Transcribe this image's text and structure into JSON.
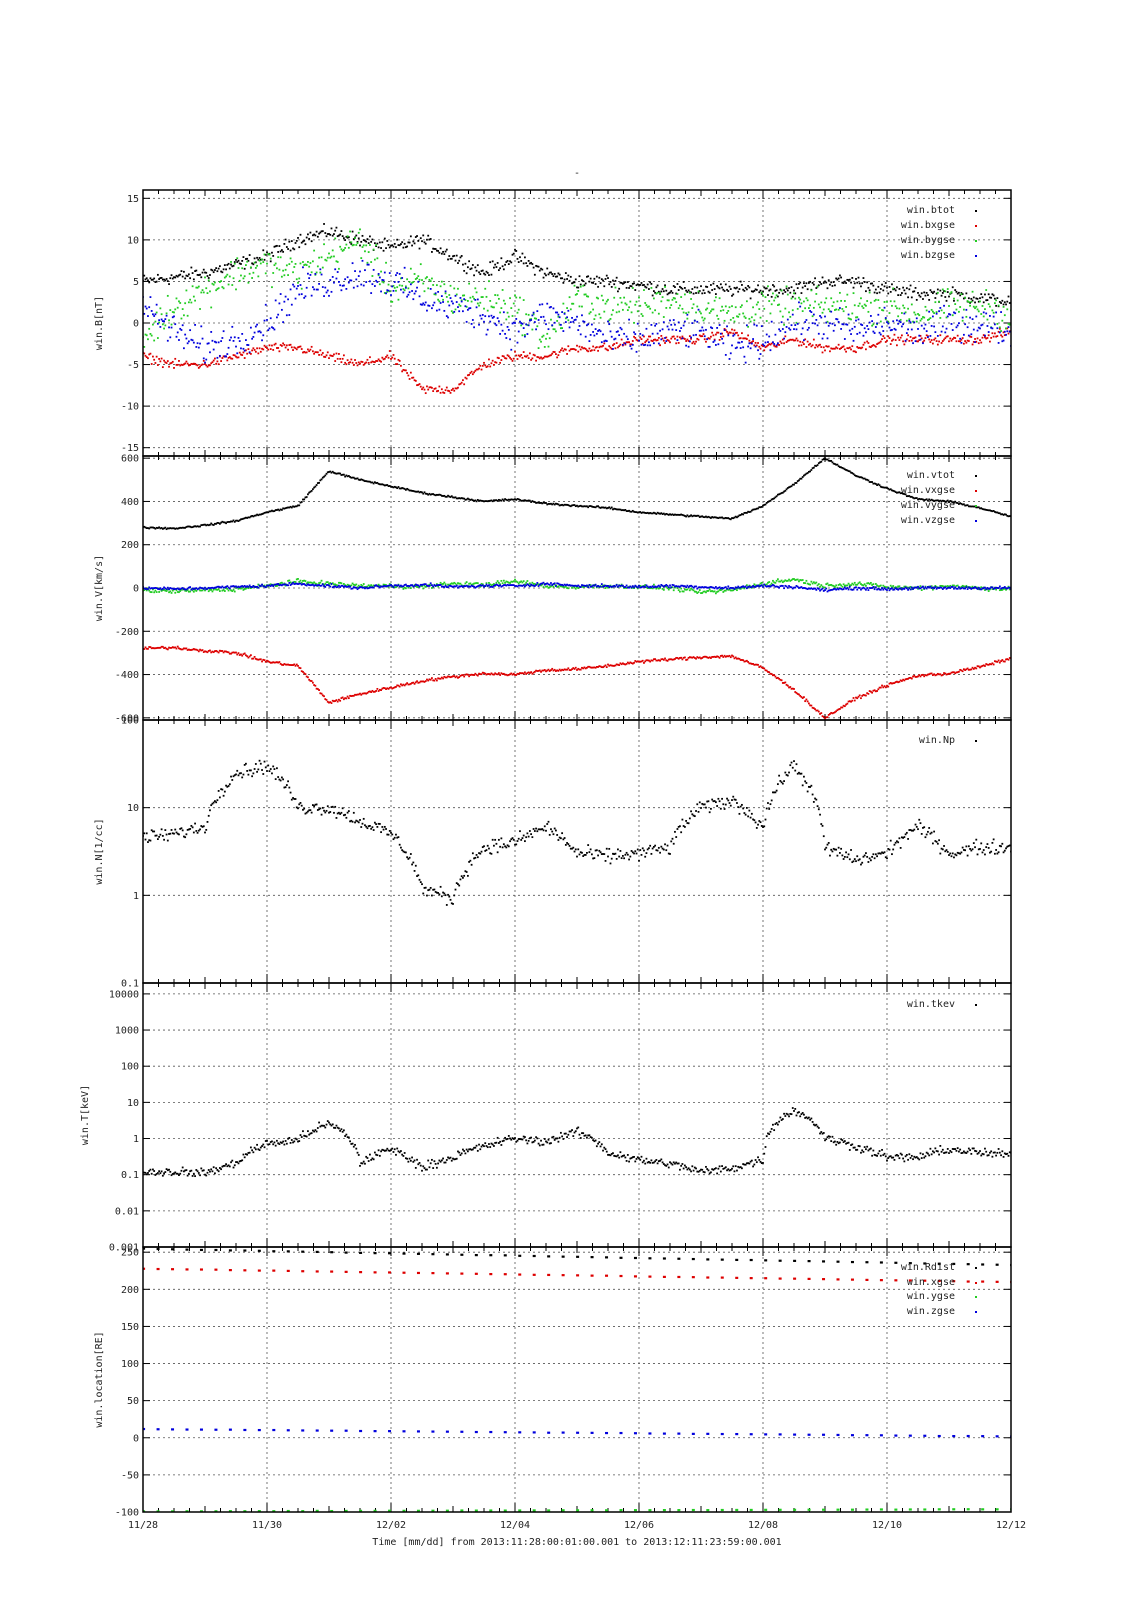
{
  "figure_title": "-",
  "footer": {
    "xlabel": "Time [mm/dd]  from 2013:11:28:00:01:00.001  to  2013:12:11:23:59:00.001"
  },
  "colors": {
    "black": "#000000",
    "red": "#dd0000",
    "green": "#22cc22",
    "blue": "#0000dd",
    "grid": "#555555"
  },
  "chart_data": [
    {
      "type": "scatter",
      "ylabel": "win.B[nT]",
      "yscale": "linear",
      "ylim": [
        -16,
        16
      ],
      "yticks": [
        15,
        10,
        5,
        0,
        -5,
        -10,
        -15
      ],
      "ytick_labels": [
        "15",
        "10",
        "5",
        "0",
        "-5",
        "-10",
        "-15"
      ],
      "x": [
        0,
        0.5,
        1,
        1.5,
        2,
        2.5,
        3,
        3.5,
        4,
        4.5,
        5,
        5.5,
        6,
        6.5,
        7,
        7.5,
        8,
        8.5,
        9,
        9.5,
        10,
        10.5,
        11,
        11.5,
        12,
        12.5,
        13,
        13.5,
        14
      ],
      "series": [
        {
          "name": "win.btot",
          "color": "black",
          "values": [
            5,
            5.5,
            6,
            7,
            8,
            10,
            11,
            10,
            9,
            10,
            8,
            6,
            8,
            6,
            5,
            5,
            4.5,
            4,
            4,
            4,
            4,
            4,
            5,
            5,
            4,
            3.5,
            3.5,
            3,
            2.5
          ]
        },
        {
          "name": "win.bxgse",
          "color": "red",
          "values": [
            -4,
            -5,
            -5,
            -4,
            -3,
            -3,
            -4,
            -5,
            -4,
            -8,
            -8,
            -5,
            -4,
            -4,
            -3,
            -3,
            -2,
            -2,
            -2,
            -1,
            -3,
            -2,
            -3,
            -3,
            -2,
            -2,
            -2,
            -2,
            -1
          ]
        },
        {
          "name": "win.bygse",
          "color": "green",
          "values": [
            -2,
            2,
            4,
            6,
            7,
            6,
            8,
            10,
            4,
            5,
            3,
            3,
            2,
            -2,
            3,
            2,
            2,
            3,
            2,
            1,
            2,
            2,
            2,
            2,
            2,
            1,
            2,
            2,
            1
          ]
        },
        {
          "name": "win.bzgse",
          "color": "blue",
          "values": [
            2,
            -1,
            -3,
            -2,
            0,
            4,
            5,
            6,
            5,
            3,
            2,
            1,
            -1,
            1,
            0,
            -2,
            -2,
            -1,
            -1,
            -3,
            -2,
            0,
            0,
            -1,
            0,
            -1,
            0,
            0,
            -1
          ]
        }
      ]
    },
    {
      "type": "scatter",
      "ylabel": "win.V[km/s]",
      "yscale": "linear",
      "ylim": [
        -610,
        610
      ],
      "yticks": [
        600,
        400,
        200,
        0,
        -200,
        -400,
        -600
      ],
      "ytick_labels": [
        "600",
        "400",
        "200",
        "0",
        "-200",
        "-400",
        "-600"
      ],
      "x": [
        0,
        0.5,
        1,
        1.5,
        2,
        2.5,
        3,
        3.5,
        4,
        4.5,
        5,
        5.5,
        6,
        6.5,
        7,
        7.5,
        8,
        8.5,
        9,
        9.5,
        10,
        10.5,
        11,
        11.5,
        12,
        12.5,
        13,
        13.5,
        14
      ],
      "series": [
        {
          "name": "win.vtot",
          "color": "black",
          "values": [
            280,
            275,
            290,
            310,
            350,
            380,
            540,
            500,
            470,
            440,
            420,
            400,
            410,
            390,
            380,
            370,
            350,
            340,
            330,
            320,
            380,
            480,
            600,
            520,
            460,
            410,
            400,
            370,
            330
          ]
        },
        {
          "name": "win.vxgse",
          "color": "red",
          "values": [
            -280,
            -275,
            -290,
            -300,
            -340,
            -360,
            -530,
            -490,
            -460,
            -430,
            -410,
            -395,
            -400,
            -380,
            -375,
            -360,
            -340,
            -330,
            -320,
            -315,
            -370,
            -470,
            -600,
            -510,
            -450,
            -405,
            -395,
            -365,
            -325
          ]
        },
        {
          "name": "win.vygse",
          "color": "green",
          "values": [
            -10,
            -15,
            -10,
            -5,
            10,
            30,
            20,
            10,
            10,
            5,
            20,
            15,
            30,
            10,
            5,
            10,
            5,
            0,
            -20,
            -10,
            20,
            40,
            10,
            20,
            5,
            0,
            10,
            0,
            -5
          ]
        },
        {
          "name": "win.vzgse",
          "color": "blue",
          "values": [
            0,
            -5,
            0,
            5,
            10,
            20,
            10,
            0,
            10,
            15,
            5,
            10,
            10,
            20,
            10,
            10,
            5,
            10,
            5,
            0,
            10,
            5,
            -10,
            0,
            -5,
            0,
            0,
            0,
            0
          ]
        }
      ]
    },
    {
      "type": "scatter",
      "ylabel": "win.N[1/cc]",
      "yscale": "log",
      "ylim": [
        0.1,
        100
      ],
      "yticks": [
        100,
        10,
        1,
        0.1
      ],
      "ytick_labels": [
        "100",
        "10",
        "1",
        "0.1"
      ],
      "x": [
        0,
        0.5,
        1,
        1.5,
        2,
        2.5,
        3,
        3.5,
        4,
        4.5,
        5,
        5.5,
        6,
        6.5,
        7,
        7.5,
        8,
        8.5,
        9,
        9.5,
        10,
        10.5,
        11,
        11.5,
        12,
        12.5,
        13,
        13.5,
        14
      ],
      "series": [
        {
          "name": "win.Np",
          "color": "black",
          "values": [
            4.5,
            5,
            6,
            25,
            30,
            10,
            10,
            7,
            5,
            1.2,
            0.9,
            3.5,
            4,
            6,
            3,
            2.8,
            3,
            3.5,
            10,
            12,
            6,
            30,
            3.5,
            2.5,
            3,
            6,
            3,
            3.5,
            3.5
          ]
        }
      ]
    },
    {
      "type": "scatter",
      "ylabel": "win.T[keV]",
      "yscale": "log",
      "ylim": [
        0.001,
        20000
      ],
      "yticks": [
        10000,
        1000,
        100,
        10,
        1,
        0.1,
        0.01,
        0.001
      ],
      "ytick_labels": [
        "10000",
        "1000",
        "100",
        "10",
        "1",
        "0.1",
        "0.01",
        "0.001"
      ],
      "x": [
        0,
        0.5,
        1,
        1.5,
        2,
        2.5,
        3,
        3.5,
        4,
        4.5,
        5,
        5.5,
        6,
        6.5,
        7,
        7.5,
        8,
        8.5,
        9,
        9.5,
        10,
        10.5,
        11,
        11.5,
        12,
        12.5,
        13,
        13.5,
        14
      ],
      "series": [
        {
          "name": "win.tkev",
          "color": "black",
          "values": [
            0.12,
            0.12,
            0.11,
            0.2,
            0.7,
            0.9,
            2.5,
            0.2,
            0.5,
            0.15,
            0.3,
            0.6,
            1,
            0.8,
            1.5,
            0.4,
            0.25,
            0.2,
            0.12,
            0.15,
            0.25,
            6,
            1,
            0.6,
            0.3,
            0.3,
            0.5,
            0.4,
            0.35
          ]
        }
      ]
    },
    {
      "type": "line",
      "ylabel": "win.location[RE]",
      "yscale": "linear",
      "ylim": [
        -100,
        257
      ],
      "yticks": [
        250,
        200,
        150,
        100,
        50,
        0,
        -50,
        -100
      ],
      "ytick_labels": [
        "250",
        "200",
        "150",
        "100",
        "50",
        "0",
        "-50",
        "-100"
      ],
      "x": [
        0,
        14
      ],
      "series": [
        {
          "name": "win.Rdist",
          "color": "black",
          "values": [
            255,
            233
          ]
        },
        {
          "name": "win.xgse",
          "color": "red",
          "values": [
            228,
            210
          ]
        },
        {
          "name": "win.ygse",
          "color": "green",
          "values": [
            -99,
            -96
          ]
        },
        {
          "name": "win.zgse",
          "color": "blue",
          "values": [
            12,
            2
          ]
        }
      ]
    }
  ],
  "xaxis": {
    "range_days": [
      0,
      14
    ],
    "major_ticks": [
      0,
      2,
      4,
      6,
      8,
      10,
      12,
      14
    ],
    "major_labels": [
      "11/28",
      "11/30",
      "12/02",
      "12/04",
      "12/06",
      "12/08",
      "12/10",
      "12/12"
    ]
  }
}
